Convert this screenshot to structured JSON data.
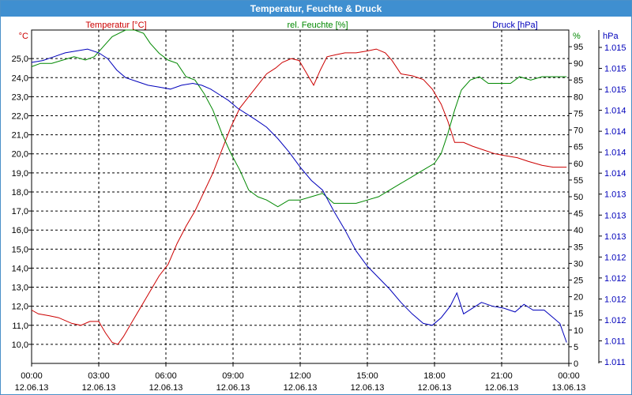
{
  "window": {
    "title": "Temperatur, Feuchte & Druck"
  },
  "chart_data": {
    "type": "line",
    "title": "Temperatur, Feuchte & Druck",
    "grid": true,
    "x_ticks": [
      {
        "time": "00:00",
        "date": "12.06.13"
      },
      {
        "time": "03:00",
        "date": "12.06.13"
      },
      {
        "time": "06:00",
        "date": "12.06.13"
      },
      {
        "time": "09:00",
        "date": "12.06.13"
      },
      {
        "time": "12:00",
        "date": "12.06.13"
      },
      {
        "time": "15:00",
        "date": "12.06.13"
      },
      {
        "time": "18:00",
        "date": "12.06.13"
      },
      {
        "time": "21:00",
        "date": "12.06.13"
      },
      {
        "time": "00:00",
        "date": "13.06.13"
      }
    ],
    "x_range_hours": [
      0,
      24
    ],
    "axes": {
      "temperature": {
        "label": "Temperatur [°C]",
        "unit": "°C",
        "color": "#cc0000",
        "side": "left",
        "range": [
          9.0,
          26.5
        ],
        "ticks": [
          "10,0",
          "11,0",
          "12,0",
          "13,0",
          "14,0",
          "15,0",
          "16,0",
          "17,0",
          "18,0",
          "19,0",
          "20,0",
          "21,0",
          "22,0",
          "23,0",
          "24,0",
          "25,0"
        ]
      },
      "humidity": {
        "label": "rel. Feuchte [%]",
        "unit": "%",
        "color": "#008800",
        "side": "right-inner",
        "range": [
          0,
          100
        ],
        "ticks": [
          "0",
          "5",
          "10",
          "15",
          "20",
          "25",
          "30",
          "35",
          "40",
          "45",
          "50",
          "55",
          "60",
          "65",
          "70",
          "75",
          "80",
          "85",
          "90",
          "95"
        ]
      },
      "pressure": {
        "label": "Druck [hPa]",
        "unit": "hPa",
        "color": "#0000bb",
        "side": "right-outer",
        "ticks": [
          "1.011",
          "1.011",
          "1.012",
          "1.012",
          "1.012",
          "1.012",
          "1.013",
          "1.013",
          "1.013",
          "1.014",
          "1.014",
          "1.014",
          "1.014",
          "1.015",
          "1.015",
          "1.015"
        ]
      }
    },
    "series": [
      {
        "name": "Temperatur [°C]",
        "axis": "temperature",
        "color": "#cc0000",
        "points": [
          [
            0,
            11.8
          ],
          [
            0.3,
            11.6
          ],
          [
            0.8,
            11.5
          ],
          [
            1.2,
            11.4
          ],
          [
            1.8,
            11.1
          ],
          [
            2.2,
            11.0
          ],
          [
            2.6,
            11.2
          ],
          [
            3.0,
            11.2
          ],
          [
            3.3,
            10.6
          ],
          [
            3.6,
            10.1
          ],
          [
            3.85,
            10.0
          ],
          [
            4.1,
            10.4
          ],
          [
            4.5,
            11.2
          ],
          [
            4.9,
            12.0
          ],
          [
            5.3,
            12.8
          ],
          [
            5.7,
            13.6
          ],
          [
            6.1,
            14.2
          ],
          [
            6.5,
            15.3
          ],
          [
            6.9,
            16.2
          ],
          [
            7.3,
            17.0
          ],
          [
            7.7,
            18.0
          ],
          [
            8.1,
            19.0
          ],
          [
            8.5,
            20.2
          ],
          [
            8.9,
            21.4
          ],
          [
            9.3,
            22.4
          ],
          [
            9.7,
            23.0
          ],
          [
            10.1,
            23.6
          ],
          [
            10.5,
            24.2
          ],
          [
            10.9,
            24.5
          ],
          [
            11.2,
            24.8
          ],
          [
            11.6,
            25.0
          ],
          [
            11.95,
            24.9
          ],
          [
            12.2,
            24.4
          ],
          [
            12.6,
            23.6
          ],
          [
            12.9,
            24.4
          ],
          [
            13.2,
            25.1
          ],
          [
            13.6,
            25.2
          ],
          [
            14.0,
            25.3
          ],
          [
            14.5,
            25.3
          ],
          [
            15.0,
            25.4
          ],
          [
            15.4,
            25.5
          ],
          [
            15.8,
            25.3
          ],
          [
            16.1,
            24.9
          ],
          [
            16.5,
            24.2
          ],
          [
            17.0,
            24.1
          ],
          [
            17.5,
            23.9
          ],
          [
            17.9,
            23.4
          ],
          [
            18.3,
            22.6
          ],
          [
            18.6,
            21.7
          ],
          [
            18.9,
            20.6
          ],
          [
            19.3,
            20.6
          ],
          [
            19.7,
            20.4
          ],
          [
            20.2,
            20.2
          ],
          [
            20.7,
            20.0
          ],
          [
            21.2,
            19.9
          ],
          [
            21.7,
            19.8
          ],
          [
            22.2,
            19.6
          ],
          [
            22.8,
            19.4
          ],
          [
            23.3,
            19.3
          ],
          [
            23.9,
            19.3
          ]
        ]
      },
      {
        "name": "rel. Feuchte [%]",
        "axis": "humidity",
        "color": "#008800",
        "points": [
          [
            0,
            89
          ],
          [
            0.4,
            90
          ],
          [
            0.9,
            90
          ],
          [
            1.4,
            91
          ],
          [
            1.9,
            92
          ],
          [
            2.4,
            91
          ],
          [
            2.8,
            92
          ],
          [
            3.2,
            95
          ],
          [
            3.6,
            98
          ],
          [
            3.9,
            99
          ],
          [
            4.2,
            100
          ],
          [
            4.6,
            100
          ],
          [
            5.0,
            99
          ],
          [
            5.3,
            96
          ],
          [
            5.7,
            93
          ],
          [
            6.1,
            91
          ],
          [
            6.5,
            90
          ],
          [
            6.9,
            86
          ],
          [
            7.3,
            85
          ],
          [
            7.7,
            81
          ],
          [
            8.1,
            76
          ],
          [
            8.5,
            69
          ],
          [
            8.9,
            63
          ],
          [
            9.3,
            58
          ],
          [
            9.7,
            52
          ],
          [
            10.1,
            50
          ],
          [
            10.5,
            49
          ],
          [
            11.0,
            47
          ],
          [
            11.5,
            49
          ],
          [
            12.0,
            49
          ],
          [
            12.5,
            50
          ],
          [
            13.0,
            51
          ],
          [
            13.5,
            48
          ],
          [
            14.0,
            48
          ],
          [
            14.5,
            48
          ],
          [
            15.0,
            49
          ],
          [
            15.5,
            50
          ],
          [
            16.0,
            52
          ],
          [
            16.5,
            54
          ],
          [
            17.0,
            56
          ],
          [
            17.5,
            58
          ],
          [
            18.0,
            60
          ],
          [
            18.3,
            63
          ],
          [
            18.6,
            69
          ],
          [
            18.9,
            76
          ],
          [
            19.2,
            82
          ],
          [
            19.6,
            85
          ],
          [
            20.0,
            86
          ],
          [
            20.4,
            84
          ],
          [
            20.9,
            84
          ],
          [
            21.4,
            84
          ],
          [
            21.8,
            86
          ],
          [
            22.3,
            85
          ],
          [
            22.8,
            86
          ],
          [
            23.3,
            86
          ],
          [
            23.9,
            86
          ]
        ]
      },
      {
        "name": "Druck [hPa]",
        "axis": "pressure",
        "color": "#0000bb",
        "points": [
          [
            0,
            24.8
          ],
          [
            0.5,
            24.9
          ],
          [
            1.0,
            25.1
          ],
          [
            1.5,
            25.3
          ],
          [
            2.0,
            25.4
          ],
          [
            2.5,
            25.5
          ],
          [
            3.0,
            25.3
          ],
          [
            3.4,
            25.0
          ],
          [
            3.8,
            24.4
          ],
          [
            4.2,
            24.0
          ],
          [
            4.7,
            23.8
          ],
          [
            5.2,
            23.6
          ],
          [
            5.7,
            23.5
          ],
          [
            6.2,
            23.4
          ],
          [
            6.7,
            23.6
          ],
          [
            7.2,
            23.7
          ],
          [
            7.6,
            23.6
          ],
          [
            8.0,
            23.4
          ],
          [
            8.4,
            23.1
          ],
          [
            8.8,
            22.8
          ],
          [
            9.2,
            22.4
          ],
          [
            9.6,
            22.1
          ],
          [
            10.0,
            21.8
          ],
          [
            10.5,
            21.4
          ],
          [
            11.0,
            20.8
          ],
          [
            11.5,
            20.1
          ],
          [
            12.0,
            19.3
          ],
          [
            12.5,
            18.6
          ],
          [
            13.0,
            18.1
          ],
          [
            13.5,
            17.0
          ],
          [
            14.0,
            16.0
          ],
          [
            14.5,
            14.9
          ],
          [
            15.0,
            14.1
          ],
          [
            15.5,
            13.5
          ],
          [
            16.0,
            12.9
          ],
          [
            16.5,
            12.2
          ],
          [
            17.0,
            11.6
          ],
          [
            17.5,
            11.1
          ],
          [
            17.9,
            11.0
          ],
          [
            18.3,
            11.4
          ],
          [
            18.7,
            12.0
          ],
          [
            19.0,
            12.7
          ],
          [
            19.3,
            11.6
          ],
          [
            19.7,
            11.9
          ],
          [
            20.1,
            12.2
          ],
          [
            20.6,
            12.0
          ],
          [
            21.1,
            11.9
          ],
          [
            21.6,
            11.7
          ],
          [
            22.0,
            12.1
          ],
          [
            22.4,
            11.8
          ],
          [
            22.9,
            11.8
          ],
          [
            23.3,
            11.4
          ],
          [
            23.6,
            11.1
          ],
          [
            23.9,
            10.1
          ]
        ]
      }
    ]
  }
}
